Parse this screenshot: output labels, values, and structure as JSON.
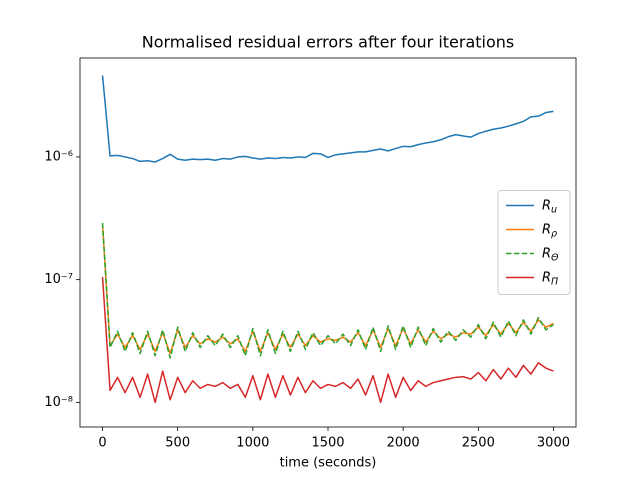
{
  "chart_data": {
    "type": "line",
    "title": "Normalised residual errors after four iterations",
    "xlabel": "time (seconds)",
    "x": [
      0,
      50,
      100,
      150,
      200,
      250,
      300,
      350,
      400,
      450,
      500,
      550,
      600,
      650,
      700,
      750,
      800,
      850,
      900,
      950,
      1000,
      1050,
      1100,
      1150,
      1200,
      1250,
      1300,
      1350,
      1400,
      1450,
      1500,
      1550,
      1600,
      1650,
      1700,
      1750,
      1800,
      1850,
      1900,
      1950,
      2000,
      2050,
      2100,
      2150,
      2200,
      2250,
      2300,
      2350,
      2400,
      2450,
      2500,
      2550,
      2600,
      2650,
      2700,
      2750,
      2800,
      2850,
      2900,
      2950,
      3000
    ],
    "series": [
      {
        "name": "Ru",
        "color": "#1f77b4",
        "dash": "solid",
        "values": [
          4.6e-06,
          1.02e-06,
          1.03e-06,
          1e-06,
          9.7e-07,
          9.2e-07,
          9.3e-07,
          9.1e-07,
          9.7e-07,
          1.05e-06,
          9.6e-07,
          9.4e-07,
          9.6e-07,
          9.5e-07,
          9.6e-07,
          9.4e-07,
          9.7e-07,
          9.6e-07,
          1e-06,
          1.01e-06,
          9.8e-07,
          9.6e-07,
          9.8e-07,
          9.7e-07,
          9.9e-07,
          9.8e-07,
          1e-06,
          9.9e-07,
          1.07e-06,
          1.06e-06,
          9.9e-07,
          1.04e-06,
          1.06e-06,
          1.08e-06,
          1.1e-06,
          1.1e-06,
          1.13e-06,
          1.16e-06,
          1.12e-06,
          1.17e-06,
          1.22e-06,
          1.21e-06,
          1.26e-06,
          1.3e-06,
          1.33e-06,
          1.38e-06,
          1.46e-06,
          1.52e-06,
          1.48e-06,
          1.45e-06,
          1.55e-06,
          1.62e-06,
          1.68e-06,
          1.72e-06,
          1.78e-06,
          1.86e-06,
          1.95e-06,
          2.12e-06,
          2.15e-06,
          2.3e-06,
          2.35e-06
        ]
      },
      {
        "name": "Rρ",
        "color": "#ff7f0e",
        "dash": "solid",
        "values": [
          2.8e-07,
          2.9e-08,
          3.6e-08,
          2.8e-08,
          3.5e-08,
          2.7e-08,
          3.6e-08,
          2.6e-08,
          3.7e-08,
          2.5e-08,
          3.9e-08,
          2.8e-08,
          3.5e-08,
          3e-08,
          3.3e-08,
          3.1e-08,
          3.4e-08,
          3e-08,
          3.3e-08,
          2.6e-08,
          3.8e-08,
          2.6e-08,
          3.7e-08,
          2.7e-08,
          3.6e-08,
          2.8e-08,
          3.6e-08,
          2.9e-08,
          3.5e-08,
          3.1e-08,
          3.3e-08,
          3.2e-08,
          3.4e-08,
          3.1e-08,
          3.7e-08,
          2.9e-08,
          3.9e-08,
          2.8e-08,
          4e-08,
          2.9e-08,
          4e-08,
          3e-08,
          3.9e-08,
          3.1e-08,
          3.8e-08,
          3.3e-08,
          3.6e-08,
          3.4e-08,
          3.7e-08,
          3.6e-08,
          4.1e-08,
          3.5e-08,
          4.3e-08,
          3.6e-08,
          4.4e-08,
          3.7e-08,
          4.5e-08,
          3.8e-08,
          4.7e-08,
          4.1e-08,
          4.4e-08
        ]
      },
      {
        "name": "RΘ",
        "color": "#2ca02c",
        "dash": "dashed",
        "values": [
          2.9e-07,
          2.8e-08,
          3.8e-08,
          2.6e-08,
          3.7e-08,
          2.5e-08,
          3.8e-08,
          2.4e-08,
          3.9e-08,
          2.3e-08,
          4.1e-08,
          2.6e-08,
          3.7e-08,
          2.8e-08,
          3.5e-08,
          2.9e-08,
          3.6e-08,
          2.8e-08,
          3.5e-08,
          2.4e-08,
          4e-08,
          2.4e-08,
          3.9e-08,
          2.5e-08,
          3.8e-08,
          2.6e-08,
          3.8e-08,
          2.7e-08,
          3.7e-08,
          2.9e-08,
          3.5e-08,
          3e-08,
          3.6e-08,
          2.9e-08,
          3.9e-08,
          2.7e-08,
          4.1e-08,
          2.6e-08,
          4.2e-08,
          2.7e-08,
          4.2e-08,
          2.8e-08,
          4.1e-08,
          2.9e-08,
          4e-08,
          3.1e-08,
          3.8e-08,
          3.2e-08,
          3.9e-08,
          3.4e-08,
          4.3e-08,
          3.3e-08,
          4.5e-08,
          3.4e-08,
          4.6e-08,
          3.5e-08,
          4.7e-08,
          3.6e-08,
          4.9e-08,
          3.9e-08,
          4.3e-08
        ]
      },
      {
        "name": "RΠ",
        "color": "#d62728",
        "dash": "solid",
        "values": [
          1.05e-07,
          1.25e-08,
          1.6e-08,
          1.2e-08,
          1.6e-08,
          1.1e-08,
          1.7e-08,
          1e-08,
          1.8e-08,
          1.05e-08,
          1.6e-08,
          1.2e-08,
          1.5e-08,
          1.3e-08,
          1.4e-08,
          1.35e-08,
          1.45e-08,
          1.3e-08,
          1.4e-08,
          1.1e-08,
          1.65e-08,
          1.05e-08,
          1.7e-08,
          1.1e-08,
          1.65e-08,
          1.15e-08,
          1.6e-08,
          1.2e-08,
          1.5e-08,
          1.3e-08,
          1.4e-08,
          1.35e-08,
          1.45e-08,
          1.3e-08,
          1.55e-08,
          1.15e-08,
          1.65e-08,
          1e-08,
          1.7e-08,
          1.1e-08,
          1.6e-08,
          1.25e-08,
          1.5e-08,
          1.35e-08,
          1.45e-08,
          1.5e-08,
          1.55e-08,
          1.6e-08,
          1.62e-08,
          1.55e-08,
          1.75e-08,
          1.5e-08,
          1.85e-08,
          1.55e-08,
          1.9e-08,
          1.6e-08,
          2e-08,
          1.7e-08,
          2.1e-08,
          1.9e-08,
          1.8e-08
        ]
      }
    ],
    "xlim": [
      -150,
      3150
    ],
    "xticks": [
      0,
      500,
      1000,
      1500,
      2000,
      2500,
      3000
    ],
    "ylim": [
      6.3e-09,
      6.4e-06
    ],
    "log_y": true,
    "yticks": [
      {
        "value": 1e-08,
        "label": "10⁻⁸"
      },
      {
        "value": 1e-07,
        "label": "10⁻⁷"
      },
      {
        "value": 1e-06,
        "label": "10⁻⁶"
      }
    ],
    "legend": "center right"
  }
}
